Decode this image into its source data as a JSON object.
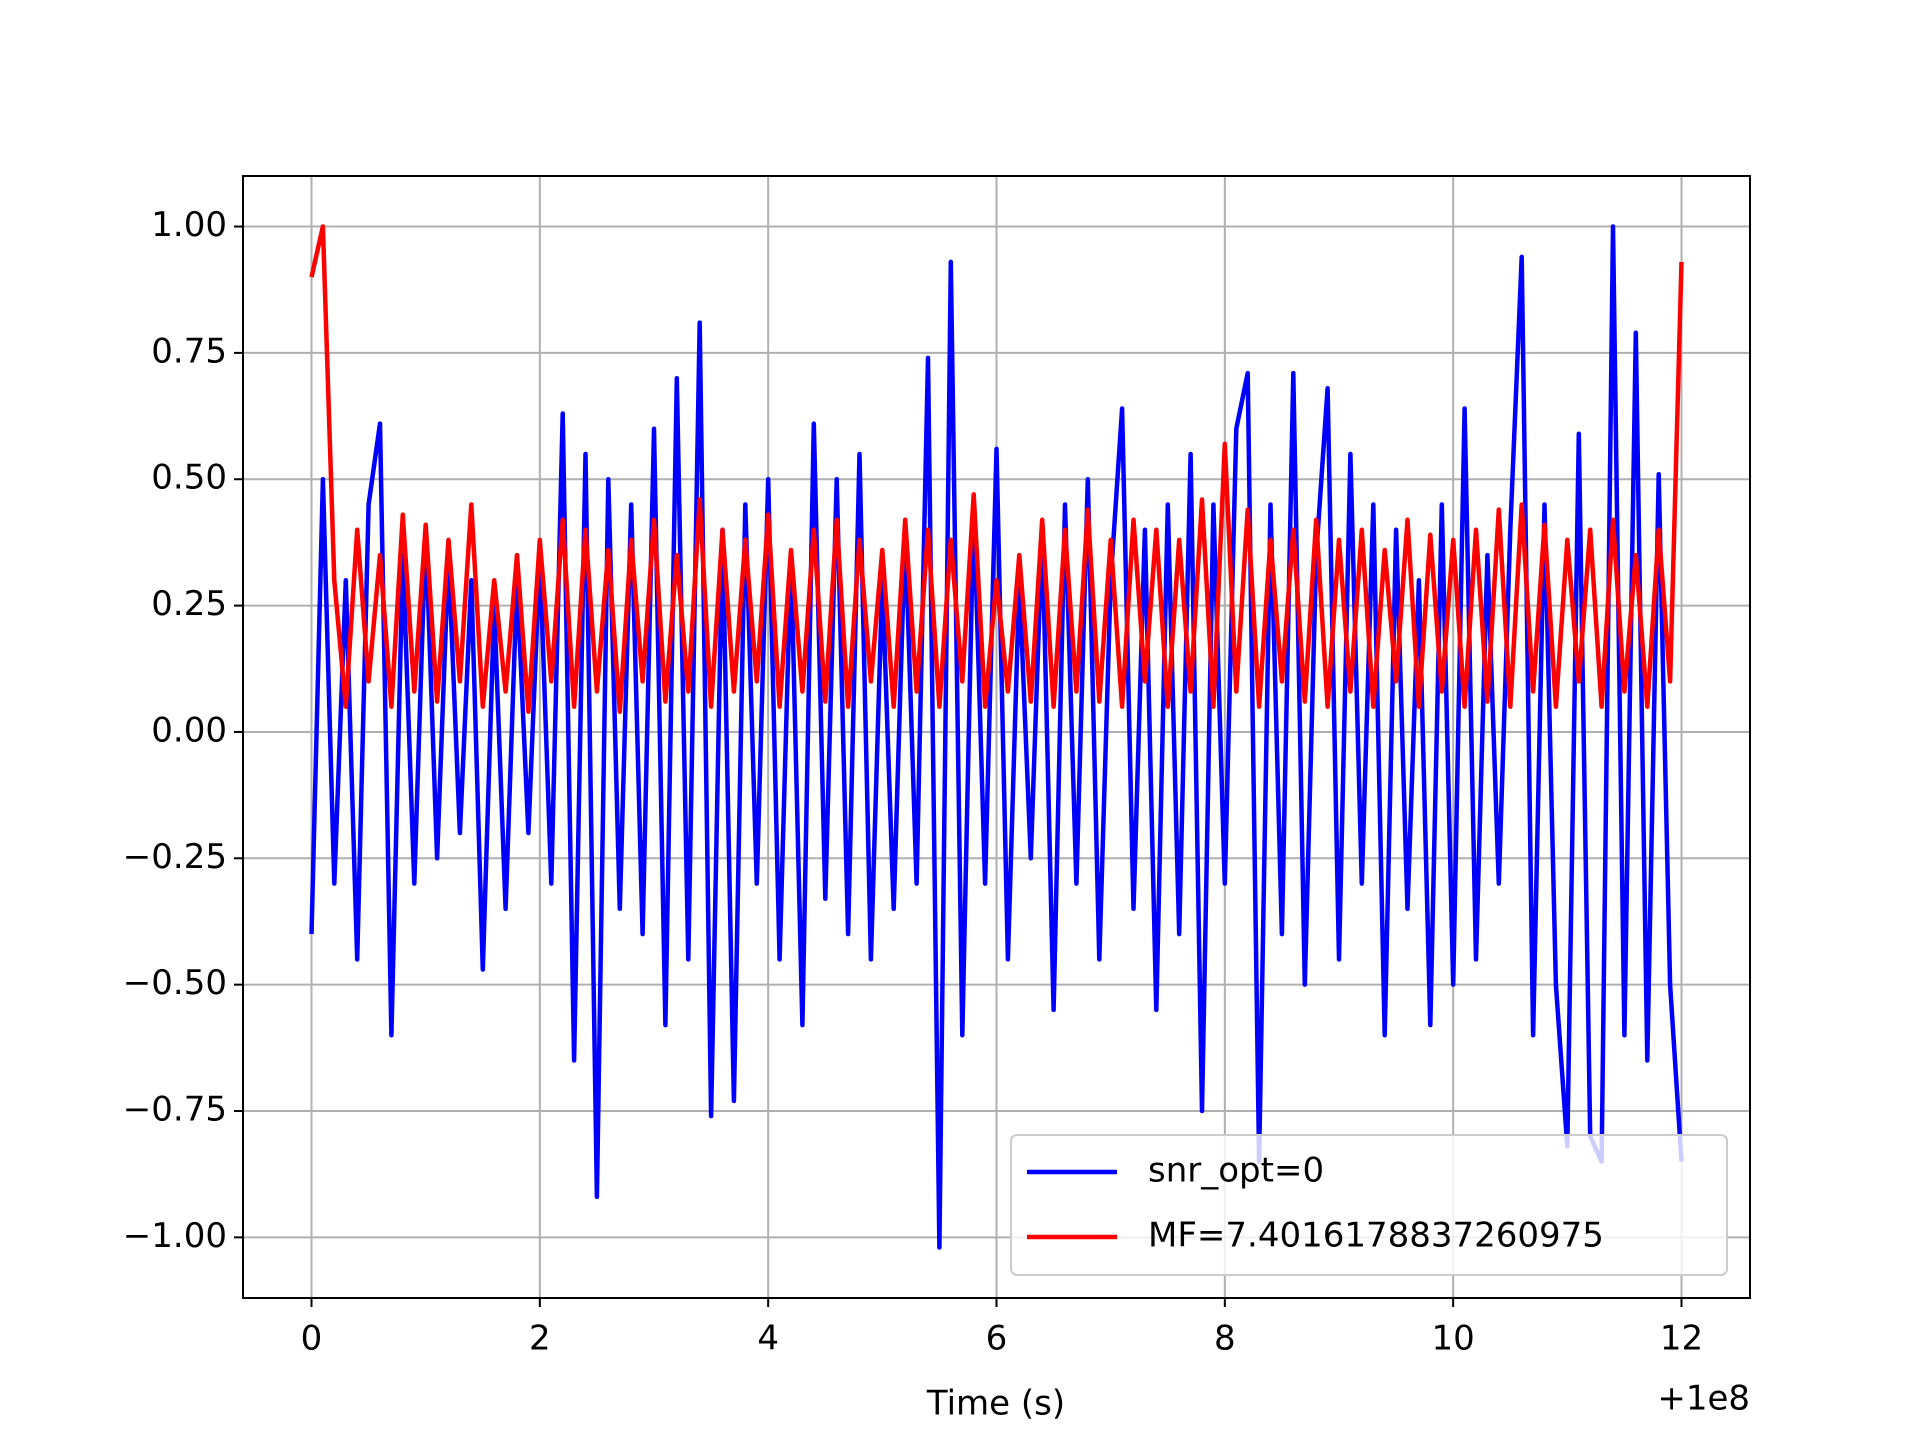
{
  "chart_data": {
    "type": "line",
    "x_label": "Time (s)",
    "x_offset_label": "+1e8",
    "x": [
      0,
      0.1,
      0.2,
      0.3,
      0.4,
      0.5,
      0.6,
      0.7,
      0.8,
      0.9,
      1,
      1.1,
      1.2,
      1.3,
      1.4,
      1.5,
      1.6,
      1.7,
      1.8,
      1.9,
      2,
      2.1,
      2.2,
      2.3,
      2.4,
      2.5,
      2.6,
      2.7,
      2.8,
      2.9,
      3,
      3.1,
      3.2,
      3.3,
      3.4,
      3.5,
      3.6,
      3.7,
      3.8,
      3.9,
      4,
      4.1,
      4.2,
      4.3,
      4.4,
      4.5,
      4.6,
      4.7,
      4.8,
      4.9,
      5,
      5.1,
      5.2,
      5.3,
      5.4,
      5.5,
      5.6,
      5.7,
      5.8,
      5.9,
      6,
      6.1,
      6.2,
      6.3,
      6.4,
      6.5,
      6.6,
      6.7,
      6.8,
      6.9,
      7,
      7.1,
      7.2,
      7.3,
      7.4,
      7.5,
      7.6,
      7.7,
      7.8,
      7.9,
      8,
      8.1,
      8.2,
      8.3,
      8.4,
      8.5,
      8.6,
      8.7,
      8.8,
      8.9,
      9,
      9.1,
      9.2,
      9.3,
      9.4,
      9.5,
      9.6,
      9.7,
      9.8,
      9.9,
      10,
      10.1,
      10.2,
      10.3,
      10.4,
      10.5,
      10.6,
      10.7,
      10.8,
      10.9,
      11,
      11.1,
      11.2,
      11.3,
      11.4,
      11.5,
      11.6,
      11.7,
      11.8,
      11.9,
      12
    ],
    "series": [
      {
        "name": "snr_opt=0",
        "color": "#0000ff",
        "values": [
          -0.4,
          0.5,
          -0.3,
          0.3,
          -0.45,
          0.45,
          0.61,
          -0.6,
          0.35,
          -0.3,
          0.4,
          -0.25,
          0.35,
          -0.2,
          0.3,
          -0.47,
          0.25,
          -0.35,
          0.3,
          -0.2,
          0.35,
          -0.3,
          0.63,
          -0.65,
          0.55,
          -0.92,
          0.5,
          -0.35,
          0.45,
          -0.4,
          0.6,
          -0.58,
          0.7,
          -0.45,
          0.81,
          -0.76,
          0.4,
          -0.73,
          0.45,
          -0.3,
          0.5,
          -0.45,
          0.35,
          -0.58,
          0.61,
          -0.33,
          0.5,
          -0.4,
          0.55,
          -0.45,
          0.3,
          -0.35,
          0.4,
          -0.3,
          0.74,
          -1.02,
          0.93,
          -0.6,
          0.45,
          -0.3,
          0.56,
          -0.45,
          0.3,
          -0.25,
          0.4,
          -0.55,
          0.45,
          -0.3,
          0.5,
          -0.45,
          0.3,
          0.64,
          -0.35,
          0.4,
          -0.55,
          0.45,
          -0.4,
          0.55,
          -0.75,
          0.45,
          -0.3,
          0.6,
          0.71,
          -0.85,
          0.45,
          -0.4,
          0.71,
          -0.5,
          0.35,
          0.68,
          -0.45,
          0.55,
          -0.3,
          0.45,
          -0.6,
          0.4,
          -0.35,
          0.3,
          -0.58,
          0.45,
          -0.5,
          0.64,
          -0.45,
          0.35,
          -0.3,
          0.4,
          0.94,
          -0.6,
          0.45,
          -0.5,
          -0.82,
          0.59,
          -0.8,
          -0.85,
          1.0,
          -0.6,
          0.79,
          -0.65,
          0.51,
          -0.5,
          -0.85
        ]
      },
      {
        "name": "MF=7.4016178837260975",
        "color": "#ff0000",
        "values": [
          0.9,
          1.0,
          0.3,
          0.05,
          0.4,
          0.1,
          0.35,
          0.05,
          0.43,
          0.08,
          0.41,
          0.06,
          0.38,
          0.1,
          0.45,
          0.05,
          0.3,
          0.08,
          0.35,
          0.04,
          0.38,
          0.1,
          0.42,
          0.05,
          0.4,
          0.08,
          0.36,
          0.04,
          0.38,
          0.1,
          0.42,
          0.06,
          0.35,
          0.08,
          0.46,
          0.05,
          0.4,
          0.08,
          0.38,
          0.1,
          0.43,
          0.05,
          0.36,
          0.08,
          0.4,
          0.06,
          0.42,
          0.05,
          0.38,
          0.1,
          0.36,
          0.05,
          0.42,
          0.08,
          0.4,
          0.05,
          0.38,
          0.1,
          0.47,
          0.05,
          0.3,
          0.08,
          0.35,
          0.06,
          0.42,
          0.05,
          0.4,
          0.08,
          0.44,
          0.06,
          0.38,
          0.05,
          0.42,
          0.1,
          0.4,
          0.05,
          0.38,
          0.08,
          0.46,
          0.05,
          0.57,
          0.08,
          0.44,
          0.05,
          0.38,
          0.1,
          0.4,
          0.06,
          0.42,
          0.05,
          0.38,
          0.08,
          0.4,
          0.05,
          0.36,
          0.1,
          0.42,
          0.05,
          0.39,
          0.08,
          0.38,
          0.05,
          0.4,
          0.06,
          0.44,
          0.05,
          0.45,
          0.08,
          0.41,
          0.05,
          0.38,
          0.1,
          0.4,
          0.05,
          0.42,
          0.08,
          0.35,
          0.05,
          0.4,
          0.1,
          0.93
        ]
      }
    ],
    "xlim": [
      -0.6,
      12.6
    ],
    "ylim": [
      -1.12,
      1.1
    ],
    "xticks": [
      0,
      2,
      4,
      6,
      8,
      10,
      12
    ],
    "yticks": [
      {
        "value": -1,
        "label": "−1.00"
      },
      {
        "value": -0.75,
        "label": "−0.75"
      },
      {
        "value": -0.5,
        "label": "−0.50"
      },
      {
        "value": -0.25,
        "label": "−0.25"
      },
      {
        "value": 0,
        "label": "0.00"
      },
      {
        "value": 0.25,
        "label": "0.25"
      },
      {
        "value": 0.5,
        "label": "0.50"
      },
      {
        "value": 0.75,
        "label": "0.75"
      },
      {
        "value": 1,
        "label": "1.00"
      }
    ],
    "grid": true,
    "legend": "lower right"
  }
}
